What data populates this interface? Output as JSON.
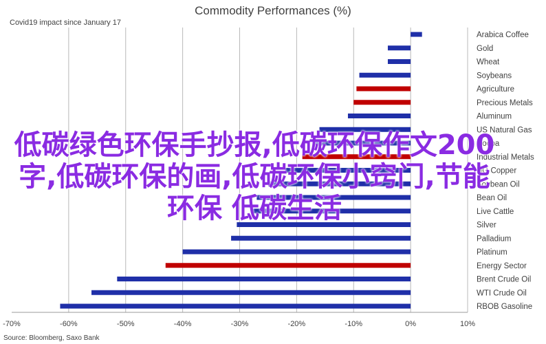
{
  "chart_data": {
    "type": "bar",
    "orientation": "horizontal",
    "title": "Commodity Performances (%)",
    "subtitle": "Covid19 impact since January 17",
    "source": "Source: Bloomberg, Saxo Bank",
    "categories": [
      "Arabica Coffee",
      "Gold",
      "Wheat",
      "Soybeans",
      "Agriculture",
      "Precious Metals",
      "Aluminum",
      "US Natural Gas",
      "Cocoa",
      "Industrial Metals",
      "HG Copper",
      "Soybean Oil",
      "Bean Oil",
      "Live Cattle",
      "Silver",
      "Palladium",
      "Platinum",
      "Energy Sector",
      "Brent Crude Oil",
      "WTI Crude Oil",
      "RBOB Gasoline"
    ],
    "values": [
      2,
      -4,
      -4,
      -9,
      -9.5,
      -10,
      -11,
      -16,
      -17,
      -19,
      -22,
      -25,
      -27,
      -28,
      -30.5,
      -31.5,
      -40,
      -43,
      -51.5,
      -56,
      -61.5
    ],
    "highlighted": [
      false,
      false,
      false,
      false,
      true,
      true,
      false,
      false,
      false,
      true,
      false,
      false,
      false,
      false,
      false,
      false,
      false,
      true,
      false,
      false,
      false
    ],
    "xlim": [
      -70,
      10
    ],
    "ticks": [
      -70,
      -60,
      -50,
      -40,
      -30,
      -20,
      -10,
      0,
      10
    ],
    "tick_labels": [
      "-70%",
      "-60%",
      "-50%",
      "-40%",
      "-30%",
      "-20%",
      "-10%",
      "0%",
      "10%"
    ],
    "grid": true,
    "legend": "none"
  },
  "colors": {
    "default_bar": "#1f2fa8",
    "highlight_bar": "#c00000",
    "grid": "#b8b8b8",
    "text": "#404040",
    "overlay_text": "#8a2be2"
  },
  "overlay": {
    "text": "低碳绿色环保手抄报,低碳环保作文200字,低碳环保的画,低碳环保小窍门,节能环保 低碳生活"
  }
}
